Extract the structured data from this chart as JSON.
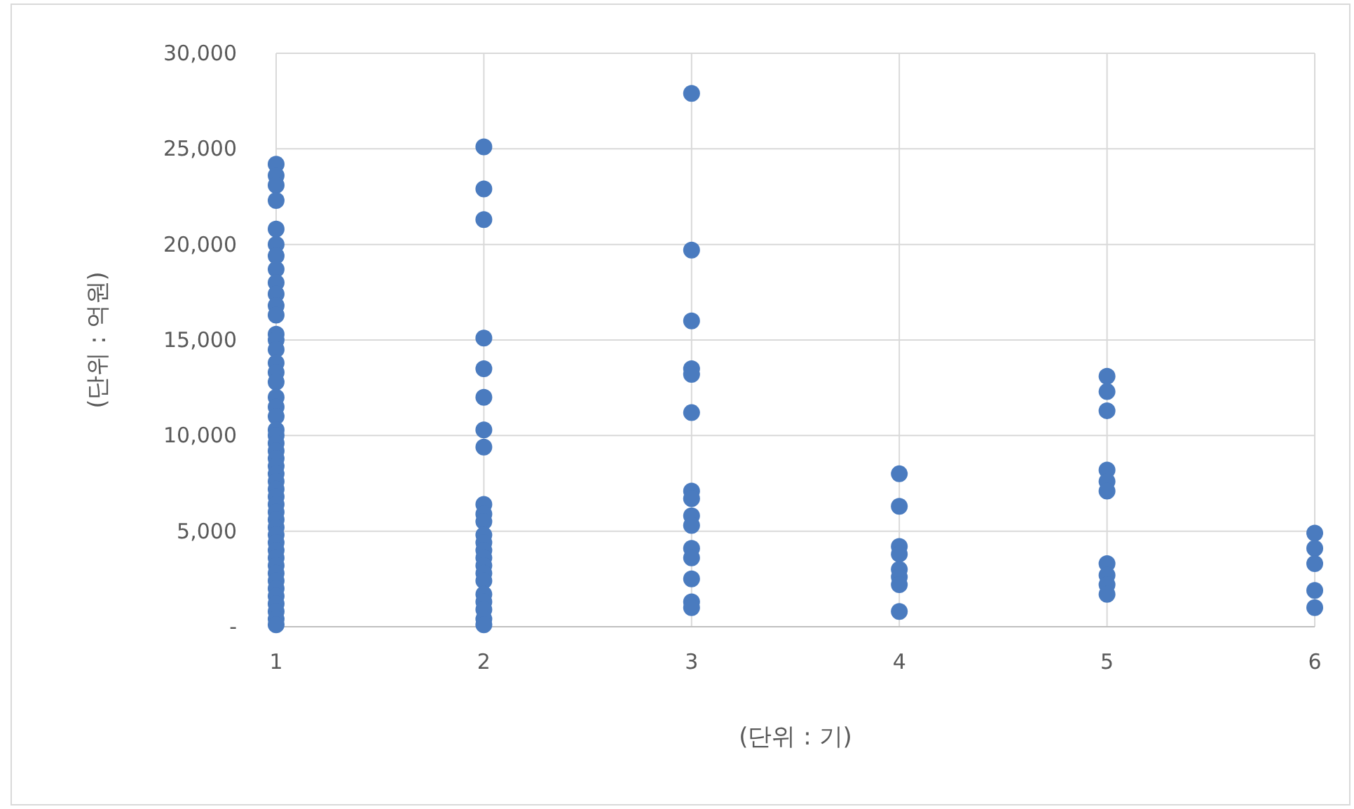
{
  "chart_data": {
    "type": "scatter",
    "xlabel": "(단위 : 기)",
    "ylabel": "(단위 : 억원)",
    "xlim": [
      1,
      6
    ],
    "xticks": [
      1,
      2,
      3,
      4,
      5,
      6
    ],
    "ylim": [
      0,
      30000
    ],
    "yticks": [
      {
        "value": 0,
        "label": "-"
      },
      {
        "value": 5000,
        "label": "5,000"
      },
      {
        "value": 10000,
        "label": "10,000"
      },
      {
        "value": 15000,
        "label": "15,000"
      },
      {
        "value": 20000,
        "label": "20,000"
      },
      {
        "value": 25000,
        "label": "25,000"
      },
      {
        "value": 30000,
        "label": "30,000"
      }
    ],
    "grid": true,
    "marker": "circle",
    "series": [
      {
        "color": "#4a7bbf",
        "x": [
          1,
          1,
          1,
          1,
          1,
          1,
          1,
          1,
          1,
          1,
          1,
          1,
          1,
          1,
          1,
          1,
          1,
          1,
          1,
          1,
          1,
          1,
          1,
          1,
          1,
          1,
          1,
          1,
          1,
          1,
          1,
          1,
          1,
          1,
          1,
          1,
          1,
          1,
          1,
          1,
          1,
          1,
          1,
          1,
          1,
          1,
          1,
          1,
          2,
          2,
          2,
          2,
          2,
          2,
          2,
          2,
          2,
          2,
          2,
          2,
          2,
          2,
          2,
          2,
          2,
          2,
          2,
          2,
          2,
          2,
          2,
          3,
          3,
          3,
          3,
          3,
          3,
          3,
          3,
          3,
          3,
          3,
          3,
          3,
          3,
          3,
          4,
          4,
          4,
          4,
          4,
          4,
          4,
          4,
          5,
          5,
          5,
          5,
          5,
          5,
          5,
          5,
          5,
          5,
          6,
          6,
          6,
          6,
          6
        ],
        "values": [
          24200,
          23600,
          23100,
          22300,
          20800,
          20000,
          19400,
          18700,
          18000,
          17400,
          16800,
          16300,
          15300,
          15000,
          14500,
          13800,
          13300,
          12800,
          12000,
          11500,
          11000,
          10300,
          10000,
          9600,
          9200,
          8800,
          8400,
          8000,
          7600,
          7200,
          6800,
          6400,
          6000,
          5600,
          5200,
          4800,
          4400,
          4000,
          3600,
          3200,
          2800,
          2400,
          2000,
          1600,
          1200,
          800,
          400,
          100,
          25100,
          22900,
          21300,
          15100,
          13500,
          12000,
          10300,
          9400,
          6400,
          5900,
          5500,
          4800,
          4400,
          4000,
          3600,
          3200,
          2800,
          2400,
          1700,
          1300,
          900,
          400,
          100,
          27900,
          19700,
          16000,
          13500,
          13200,
          11200,
          7100,
          6700,
          5800,
          5300,
          4100,
          3600,
          2500,
          1300,
          1000,
          8000,
          6300,
          4200,
          3800,
          3000,
          2600,
          2200,
          800,
          13100,
          12300,
          11300,
          8200,
          7600,
          7100,
          3300,
          2700,
          2200,
          1700,
          4900,
          4100,
          3300,
          1900,
          1000
        ]
      }
    ]
  }
}
